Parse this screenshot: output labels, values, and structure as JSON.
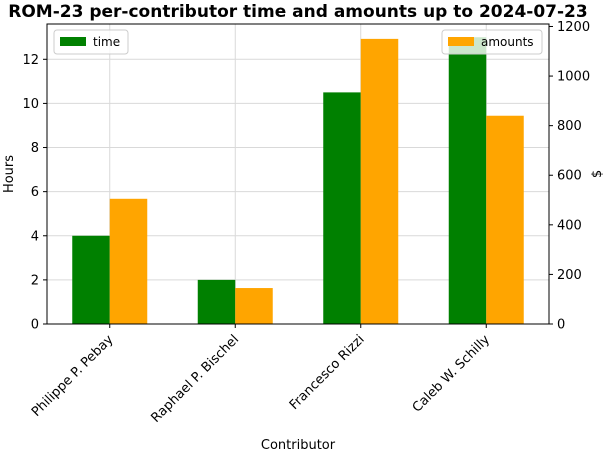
{
  "chart_data": {
    "type": "bar",
    "title": "ROM-23 per-contributor time and amounts up to 2024-07-23",
    "xlabel": "Contributor",
    "ylabel_left": "Hours",
    "ylabel_right": "$",
    "categories": [
      "Philippe P. Pebay",
      "Raphael P. Bischel",
      "Francesco Rizzi",
      "Caleb W. Schilly"
    ],
    "series": [
      {
        "name": "time",
        "axis": "left",
        "color": "#008000",
        "values": [
          4.0,
          2.0,
          10.5,
          13.0
        ]
      },
      {
        "name": "amounts",
        "axis": "right",
        "color": "#ffa500",
        "values": [
          505,
          145,
          1150,
          840
        ]
      }
    ],
    "ylim_left": [
      0,
      13.6
    ],
    "ylim_right": [
      0,
      1210
    ],
    "yticks_left": [
      0,
      2,
      4,
      6,
      8,
      10,
      12
    ],
    "yticks_right": [
      0,
      200,
      400,
      600,
      800,
      1000,
      1200
    ],
    "grid": true,
    "legend_left_placement": "top-left",
    "legend_right_placement": "top-right"
  }
}
